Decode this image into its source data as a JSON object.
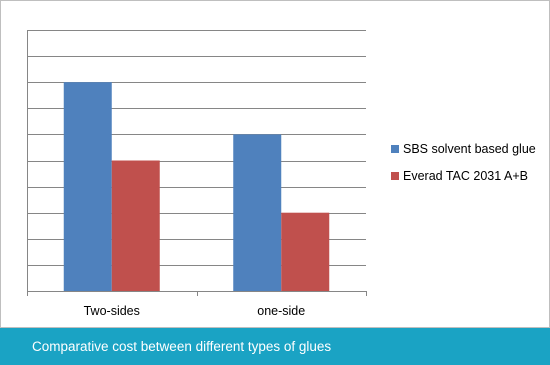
{
  "caption": "Comparative cost between different types of glues",
  "chart_data": {
    "type": "bar",
    "categories": [
      "Two-sides",
      "one-side"
    ],
    "series": [
      {
        "name": "SBS solvent based glue",
        "values": [
          8,
          6
        ],
        "color": "#4f81bd"
      },
      {
        "name": "Everad TAC 2031 A+B",
        "values": [
          5,
          3
        ],
        "color": "#c0504d"
      }
    ],
    "ylim": [
      0,
      10
    ],
    "y_gridlines": true,
    "y_tick_step": 1,
    "y_tick_labels_shown": false,
    "legend_position": "right"
  }
}
